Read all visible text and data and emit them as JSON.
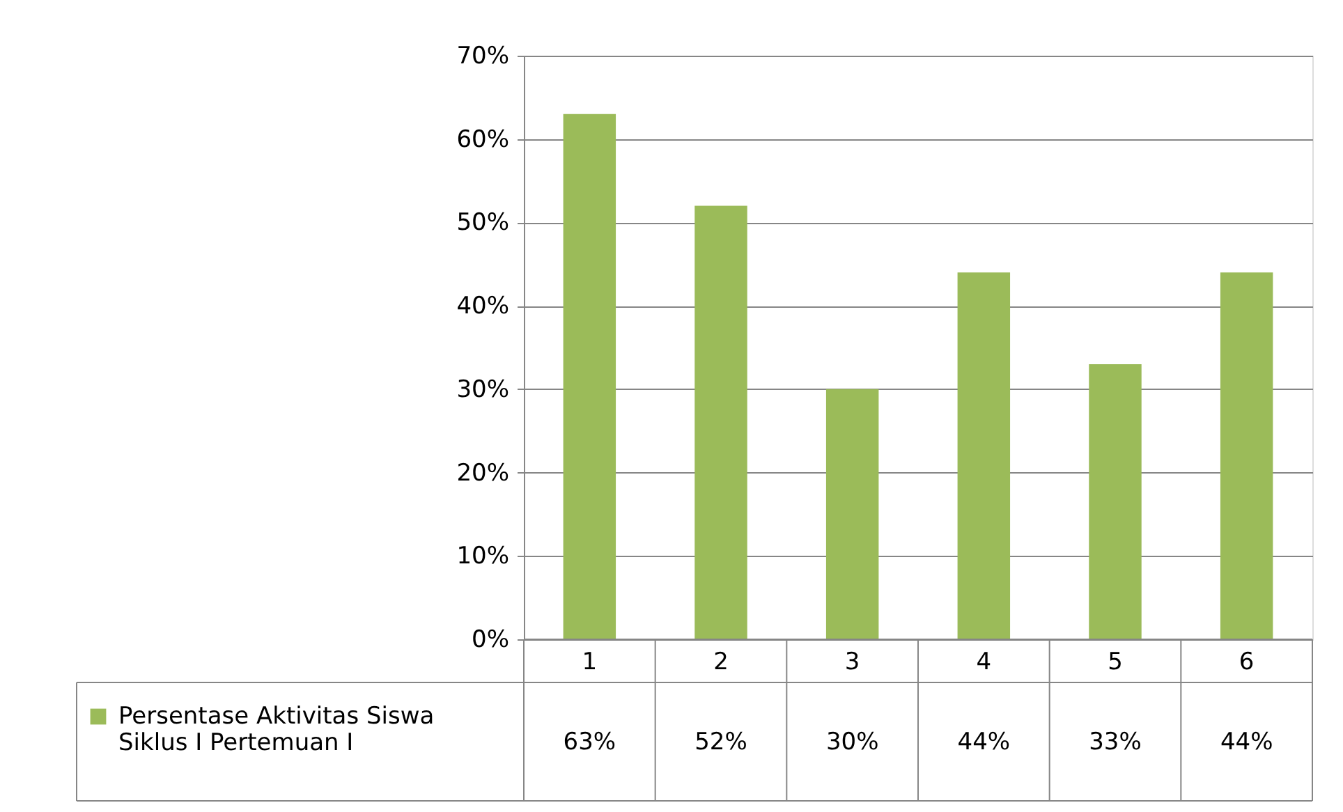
{
  "chart_data": {
    "type": "bar",
    "categories": [
      "1",
      "2",
      "3",
      "4",
      "5",
      "6"
    ],
    "series": [
      {
        "name": "Persentase Aktivitas Siswa Siklus I Pertemuan I",
        "color": "#9bbb59",
        "values": [
          63,
          52,
          30,
          44,
          33,
          44
        ]
      }
    ],
    "ylim": [
      0,
      70
    ],
    "yticks": [
      {
        "value": 0,
        "label": "0%"
      },
      {
        "value": 10,
        "label": "10%"
      },
      {
        "value": 20,
        "label": "20%"
      },
      {
        "value": 30,
        "label": "30%"
      },
      {
        "value": 40,
        "label": "40%"
      },
      {
        "value": 50,
        "label": "50%"
      },
      {
        "value": 60,
        "label": "60%"
      },
      {
        "value": 70,
        "label": "70%"
      }
    ],
    "value_labels": [
      "63%",
      "52%",
      "30%",
      "44%",
      "33%",
      "44%"
    ],
    "grid": "y",
    "legend": "bottom left"
  }
}
